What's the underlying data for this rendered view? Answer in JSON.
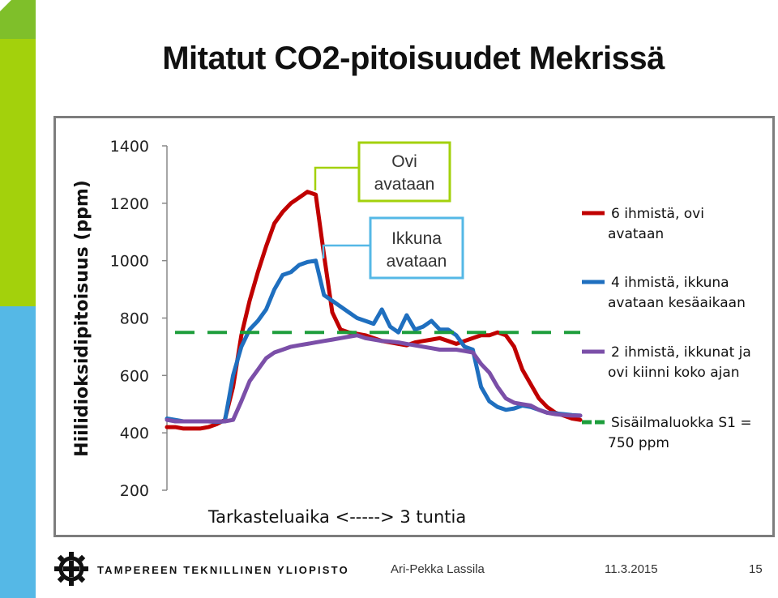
{
  "slide": {
    "title": "Mitatut CO2-pitoisuudet Mekrissä",
    "footer_logo_text": "TAMPEREEN TEKNILLINEN YLIOPISTO",
    "author": "Ari-Pekka Lassila",
    "date": "11.3.2015",
    "page": "15",
    "colors": {
      "green_bar": "#a3d10c",
      "blue_bar": "#55b8e6"
    }
  },
  "chart_data": {
    "type": "line",
    "title": "",
    "ylabel": "Hiilidioksidipitoisuus (ppm)",
    "xlabel": "Tarkasteluaika <-----> 3 tuntia",
    "ylim": [
      200,
      1400
    ],
    "yticks": [
      1400,
      1200,
      1000,
      800,
      600,
      400,
      200
    ],
    "grid": false,
    "legend_position": "right",
    "annotations": [
      {
        "label": "Ovi avataan",
        "color": "#a3d10c",
        "points_to": "6 ihmistä, ovi avataan peak"
      },
      {
        "label": "Ikkuna avataan",
        "color": "#55b8e6",
        "points_to": "4 ihmistä, ikkuna avataan kesäaikaan peak"
      }
    ],
    "series": [
      {
        "name": "6 ihmistä, ovi avataan",
        "color": "#c00000",
        "x": [
          0,
          2,
          4,
          6,
          8,
          10,
          12,
          14,
          16,
          18,
          20,
          22,
          24,
          26,
          28,
          30,
          32,
          34,
          36,
          38,
          40,
          42,
          44,
          46,
          48,
          50,
          52,
          54,
          56,
          58,
          60,
          62,
          64,
          66,
          68,
          70,
          72,
          74,
          76,
          78,
          80,
          82,
          84,
          86,
          88,
          90,
          92,
          94,
          96,
          98,
          100
        ],
        "values": [
          420,
          420,
          415,
          415,
          415,
          420,
          430,
          445,
          560,
          740,
          860,
          960,
          1050,
          1130,
          1170,
          1200,
          1220,
          1240,
          1230,
          1020,
          820,
          760,
          750,
          745,
          740,
          730,
          720,
          715,
          710,
          705,
          715,
          720,
          725,
          730,
          720,
          710,
          720,
          730,
          740,
          740,
          750,
          740,
          700,
          620,
          570,
          520,
          490,
          470,
          460,
          450,
          445
        ]
      },
      {
        "name": "4 ihmistä, ikkuna avataan kesäaikaan",
        "color": "#1f6fbf",
        "x": [
          0,
          2,
          4,
          6,
          8,
          10,
          12,
          14,
          16,
          18,
          20,
          22,
          24,
          26,
          28,
          30,
          32,
          34,
          36,
          38,
          40,
          42,
          44,
          46,
          48,
          50,
          52,
          54,
          56,
          58,
          60,
          62,
          64,
          66,
          68,
          70,
          72,
          74,
          76,
          78,
          80,
          82,
          84,
          86,
          88,
          90,
          92,
          94,
          96,
          98,
          100
        ],
        "values": [
          450,
          445,
          440,
          440,
          440,
          440,
          438,
          440,
          600,
          700,
          760,
          790,
          830,
          900,
          950,
          960,
          985,
          995,
          1000,
          880,
          860,
          840,
          820,
          800,
          790,
          780,
          830,
          770,
          750,
          810,
          760,
          770,
          790,
          760,
          760,
          740,
          700,
          690,
          560,
          510,
          490,
          480,
          485,
          495,
          490,
          480,
          470,
          468,
          465,
          462,
          460
        ]
      },
      {
        "name": "2 ihmistä, ikkunat ja ovi kiinni koko ajan",
        "color": "#7b4fa8",
        "x": [
          0,
          2,
          4,
          6,
          8,
          10,
          12,
          14,
          16,
          18,
          20,
          22,
          24,
          26,
          28,
          30,
          32,
          34,
          36,
          38,
          40,
          42,
          44,
          46,
          48,
          50,
          52,
          54,
          56,
          58,
          60,
          62,
          64,
          66,
          68,
          70,
          72,
          74,
          76,
          78,
          80,
          82,
          84,
          86,
          88,
          90,
          92,
          94,
          96,
          98,
          100
        ],
        "values": [
          445,
          440,
          440,
          440,
          440,
          440,
          440,
          440,
          445,
          510,
          580,
          620,
          660,
          680,
          690,
          700,
          705,
          710,
          715,
          720,
          725,
          730,
          735,
          740,
          730,
          725,
          720,
          718,
          715,
          710,
          705,
          700,
          695,
          690,
          690,
          690,
          685,
          680,
          640,
          610,
          560,
          520,
          505,
          500,
          495,
          480,
          470,
          465,
          462,
          460,
          460
        ]
      },
      {
        "name": "Sisäilmaluokka S1 = 750 ppm",
        "color": "#1e9e3c",
        "dashed": true,
        "x": [
          0,
          100
        ],
        "values": [
          750,
          750
        ]
      }
    ]
  }
}
